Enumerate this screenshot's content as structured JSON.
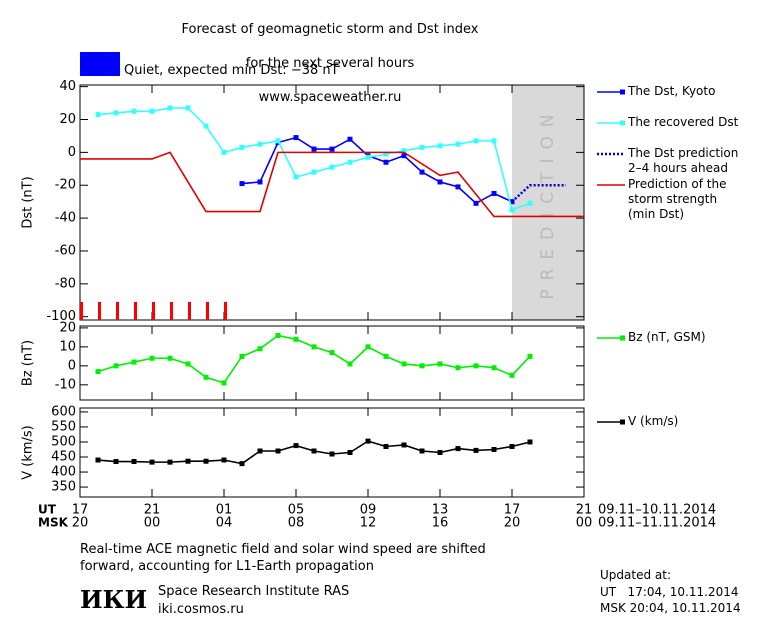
{
  "header": {
    "title_lines": [
      "Forecast of geomagnetic storm and Dst index",
      "for the next several hours",
      "www.spaceweather.ru"
    ],
    "status": "Quiet, expected min Dst: −38 nT",
    "status_color": "#0000ff"
  },
  "chart_data": [
    {
      "type": "line",
      "ylabel": "Dst (nT)",
      "ylim": [
        -102,
        41
      ],
      "yticks": [
        40,
        20,
        0,
        -20,
        -40,
        -60,
        -80,
        -100
      ],
      "xlim": [
        0,
        28
      ],
      "prediction_region": {
        "x": [
          24,
          28
        ],
        "label": "PREDICTION",
        "color": "#d9d9d9"
      },
      "markers": {
        "x": [
          0,
          1,
          2,
          3,
          4,
          5,
          6,
          7,
          8
        ],
        "values": [
          -91,
          -91,
          -91,
          -91,
          -91,
          -91,
          -91,
          -91,
          -91
        ],
        "color": "#ff0000"
      },
      "series": [
        {
          "name": "The Dst, Kyoto",
          "color": "#0000ff",
          "marker": "square",
          "style": "solid",
          "x": [
            9,
            10,
            11,
            12,
            13,
            14,
            15,
            16,
            17,
            18,
            19,
            20,
            21,
            22,
            23,
            24
          ],
          "values": [
            -19,
            -18,
            6,
            9,
            2,
            2,
            8,
            -2,
            -6,
            -2,
            -12,
            -18,
            -21,
            -31,
            -25,
            -30
          ]
        },
        {
          "name": "The recovered Dst",
          "color": "#33ffff",
          "marker": "square",
          "style": "solid",
          "x": [
            1,
            2,
            3,
            4,
            5,
            6,
            7,
            8,
            9,
            10,
            11,
            12,
            13,
            14,
            15,
            16,
            17,
            18,
            19,
            20,
            21,
            22,
            23,
            24,
            25
          ],
          "values": [
            23,
            24,
            25,
            25,
            27,
            27,
            16,
            0,
            3,
            5,
            7,
            -15,
            -12,
            -9,
            -6,
            -3,
            -1,
            1,
            3,
            4,
            5,
            7,
            7,
            -35,
            -31
          ]
        },
        {
          "name": "The Dst prediction\n2–4 hours ahead",
          "color": "#0000cc",
          "marker": "none",
          "style": "dotted",
          "x": [
            24,
            25,
            26,
            27
          ],
          "values": [
            -30,
            -20,
            -20,
            -20
          ]
        },
        {
          "name": "Prediction of the\nstorm strength\n(min Dst)",
          "color": "#dd0000",
          "marker": "none",
          "style": "solid",
          "x": [
            0,
            4,
            5,
            7,
            10,
            11,
            18,
            20,
            21,
            23,
            28
          ],
          "values": [
            -4,
            -4,
            0,
            -36,
            -36,
            0,
            0,
            -14,
            -12,
            -39,
            -39
          ]
        }
      ]
    },
    {
      "type": "line",
      "ylabel": "Bz (nT)",
      "ylim": [
        -18,
        21
      ],
      "yticks": [
        20,
        10,
        0,
        -10
      ],
      "xlim": [
        0,
        28
      ],
      "series": [
        {
          "name": "Bz (nT, GSM)",
          "color": "#00ee00",
          "marker": "square",
          "style": "solid",
          "x": [
            1,
            2,
            3,
            4,
            5,
            6,
            7,
            8,
            9,
            10,
            11,
            12,
            13,
            14,
            15,
            16,
            17,
            18,
            19,
            20,
            21,
            22,
            23,
            24,
            25
          ],
          "values": [
            -3,
            0,
            2,
            4,
            4,
            1,
            -6,
            -9,
            5,
            9,
            16,
            14,
            10,
            7,
            1,
            10,
            5,
            1,
            0,
            1,
            -1,
            0,
            -1,
            -5,
            5
          ]
        }
      ]
    },
    {
      "type": "line",
      "ylabel": "V (km/s)",
      "ylim": [
        317,
        613
      ],
      "yticks": [
        600,
        550,
        500,
        450,
        400,
        350
      ],
      "xlim": [
        0,
        28
      ],
      "xticks": [
        {
          "value": 0,
          "label": "17"
        },
        {
          "value": 4,
          "label": "21"
        },
        {
          "value": 8,
          "label": "01"
        },
        {
          "value": 12,
          "label": "05"
        },
        {
          "value": 16,
          "label": "09"
        },
        {
          "value": 20,
          "label": "13"
        },
        {
          "value": 24,
          "label": "17"
        },
        {
          "value": 28,
          "label": "21"
        }
      ],
      "xticks_msk": [
        {
          "value": 0,
          "label": "20"
        },
        {
          "value": 4,
          "label": "00"
        },
        {
          "value": 8,
          "label": "04"
        },
        {
          "value": 12,
          "label": "08"
        },
        {
          "value": 16,
          "label": "12"
        },
        {
          "value": 20,
          "label": "16"
        },
        {
          "value": 24,
          "label": "20"
        },
        {
          "value": 28,
          "label": "00"
        }
      ],
      "x_row_labels": [
        "UT",
        "MSK"
      ],
      "x_ranges": [
        "09.11–10.11.2014",
        "09.11–11.11.2014"
      ],
      "series": [
        {
          "name": "V (km/s)",
          "color": "#000000",
          "marker": "square",
          "style": "solid",
          "x": [
            1,
            2,
            3,
            4,
            5,
            6,
            7,
            8,
            9,
            10,
            11,
            12,
            13,
            14,
            15,
            16,
            17,
            18,
            19,
            20,
            21,
            22,
            23,
            24,
            25
          ],
          "values": [
            440,
            435,
            435,
            433,
            433,
            436,
            436,
            440,
            428,
            470,
            470,
            488,
            470,
            460,
            465,
            503,
            485,
            490,
            470,
            465,
            478,
            472,
            475,
            485,
            500
          ]
        }
      ]
    }
  ],
  "footer": {
    "note": "Real-time ACE magnetic field and solar wind speed are shifted\nforward, accounting for L1-Earth propagation",
    "logo": "ИКИ",
    "institute": "Space Research Institute RAS",
    "site": "iki.cosmos.ru",
    "updated_label": "Updated at:",
    "updated_ut": "UT   17:04, 10.11.2014",
    "updated_msk": "MSK 20:04, 10.11.2014"
  }
}
